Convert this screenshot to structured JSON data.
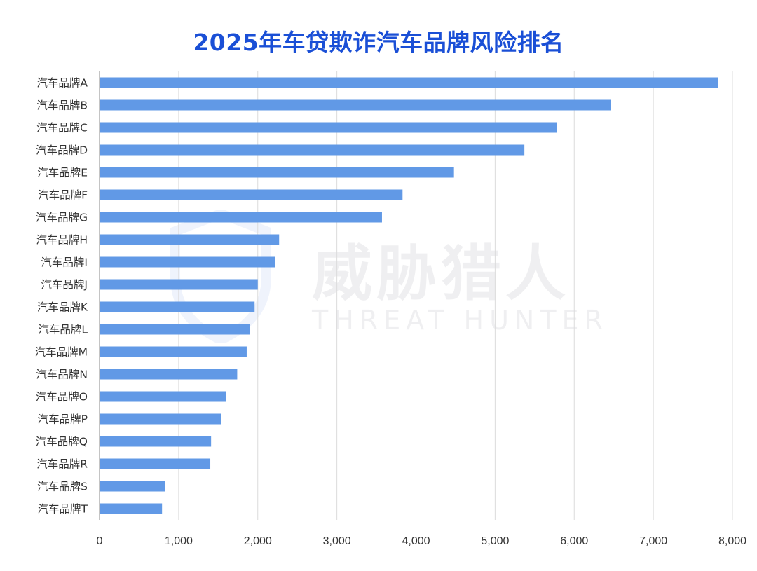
{
  "chart_data": {
    "type": "bar",
    "orientation": "horizontal",
    "title": "2025年车贷欺诈汽车品牌风险排名",
    "categories": [
      "汽车品牌A",
      "汽车品牌B",
      "汽车品牌C",
      "汽车品牌D",
      "汽车品牌E",
      "汽车品牌F",
      "汽车品牌G",
      "汽车品牌H",
      "汽车品牌I",
      "汽车品牌J",
      "汽车品牌K",
      "汽车品牌L",
      "汽车品牌M",
      "汽车品牌N",
      "汽车品牌O",
      "汽车品牌P",
      "汽车品牌Q",
      "汽车品牌R",
      "汽车品牌S",
      "汽车品牌T"
    ],
    "values": [
      7820,
      6460,
      5780,
      5370,
      4480,
      3830,
      3570,
      2270,
      2220,
      2000,
      1960,
      1900,
      1860,
      1740,
      1600,
      1540,
      1410,
      1400,
      830,
      790
    ],
    "xlim": [
      0,
      8000
    ],
    "xticks": [
      "0",
      "1,000",
      "2,000",
      "3,000",
      "4,000",
      "5,000",
      "6,000",
      "7,000",
      "8,000"
    ],
    "xlabel": "",
    "ylabel": "",
    "grid": "vertical",
    "bar_color": "#6199e6"
  },
  "watermark": {
    "cn": "威胁猎人",
    "en": "THREAT HUNTER"
  }
}
